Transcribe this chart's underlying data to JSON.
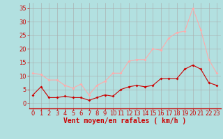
{
  "hours": [
    0,
    1,
    2,
    3,
    4,
    5,
    6,
    7,
    8,
    9,
    10,
    11,
    12,
    13,
    14,
    15,
    16,
    17,
    18,
    19,
    20,
    21,
    22,
    23
  ],
  "wind_avg": [
    3,
    6,
    2,
    2,
    2.5,
    2,
    2,
    1,
    2,
    3,
    2.5,
    5,
    6,
    6.5,
    6,
    6.5,
    9,
    9,
    9,
    12.5,
    14,
    12.5,
    7.5,
    6.5
  ],
  "wind_gust": [
    11,
    10.5,
    8.5,
    8.5,
    6.5,
    5.5,
    7,
    3,
    6.5,
    8,
    11,
    11,
    15.5,
    16,
    16,
    20,
    19.5,
    24,
    26,
    26.5,
    35,
    27,
    16,
    11
  ],
  "avg_color": "#cc0000",
  "gust_color": "#ffaaaa",
  "background_color": "#b2e0e0",
  "grid_color": "#aaaaaa",
  "xlabel": "Vent moyen/en rafales ( km/h )",
  "ylim": [
    -2,
    37
  ],
  "yticks": [
    0,
    5,
    10,
    15,
    20,
    25,
    30,
    35
  ],
  "tick_color": "#cc0000",
  "tick_fontsize": 6,
  "label_fontsize": 7
}
